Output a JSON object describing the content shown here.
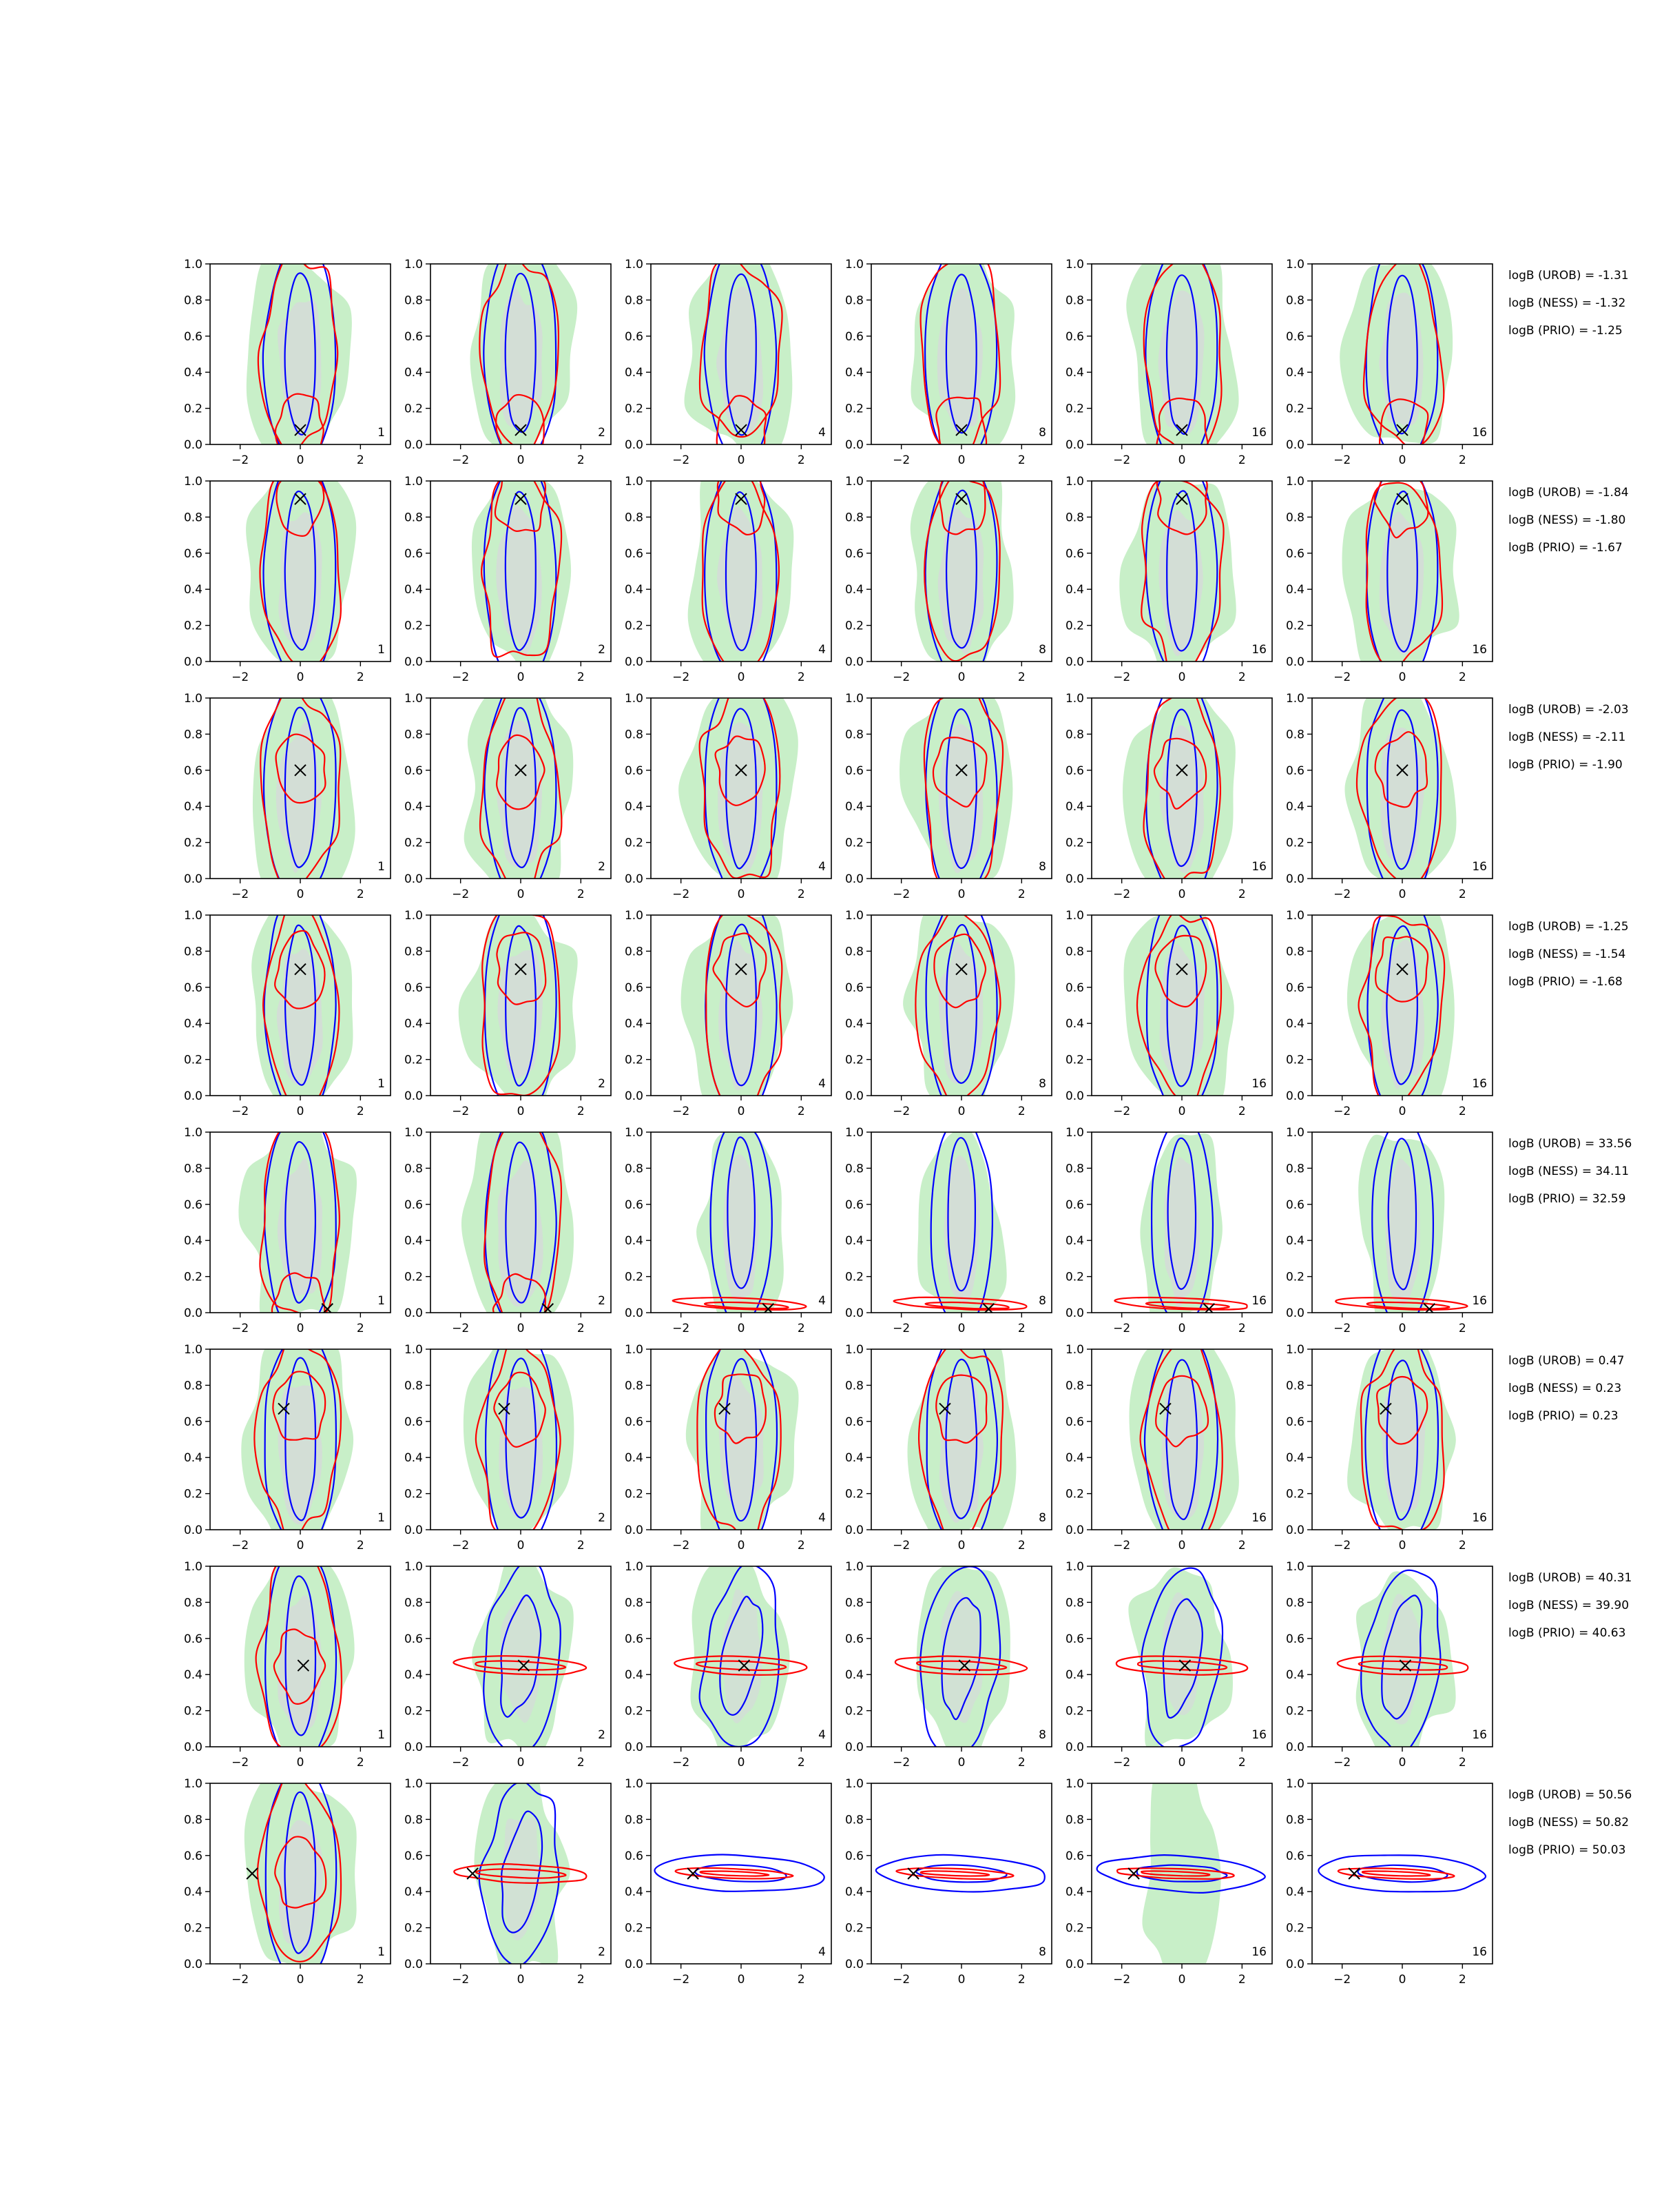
{
  "figure": {
    "columns": [
      1,
      2,
      4,
      8,
      16,
      16
    ],
    "colors": {
      "green_fill": "#c8efc8",
      "green_fill_inner": "#b4dfb4",
      "gray_fill": "#d7d7dc",
      "blue": "#0000ff",
      "red": "#ff0000",
      "axis": "#000000"
    }
  },
  "chart_data": [
    {
      "type": "contour-grid-row",
      "row": 1,
      "xlim": [
        -3,
        3
      ],
      "ylim": [
        0,
        1
      ],
      "xticks": [
        -2,
        0,
        2
      ],
      "yticks": [
        0.0,
        0.2,
        0.4,
        0.6,
        0.8,
        1.0
      ],
      "marker": {
        "x": 0.0,
        "y": 0.08
      },
      "panel_labels": [
        "1",
        "2",
        "4",
        "8",
        "16",
        "16"
      ],
      "annotations": [
        "logB (UROB) = -1.31",
        "logB (NESS) = -1.32",
        "logB (PRIO) = -1.25"
      ]
    },
    {
      "type": "contour-grid-row",
      "row": 2,
      "xlim": [
        -3,
        3
      ],
      "ylim": [
        0,
        1
      ],
      "xticks": [
        -2,
        0,
        2
      ],
      "yticks": [
        0.0,
        0.2,
        0.4,
        0.6,
        0.8,
        1.0
      ],
      "marker": {
        "x": 0.0,
        "y": 0.9
      },
      "panel_labels": [
        "1",
        "2",
        "4",
        "8",
        "16",
        "16"
      ],
      "annotations": [
        "logB (UROB) = -1.84",
        "logB (NESS) = -1.80",
        "logB (PRIO) = -1.67"
      ]
    },
    {
      "type": "contour-grid-row",
      "row": 3,
      "xlim": [
        -3,
        3
      ],
      "ylim": [
        0,
        1
      ],
      "xticks": [
        -2,
        0,
        2
      ],
      "yticks": [
        0.0,
        0.2,
        0.4,
        0.6,
        0.8,
        1.0
      ],
      "marker": {
        "x": 0.0,
        "y": 0.6
      },
      "panel_labels": [
        "1",
        "2",
        "4",
        "8",
        "16",
        "16"
      ],
      "annotations": [
        "logB (UROB) = -2.03",
        "logB (NESS) = -2.11",
        "logB (PRIO) = -1.90"
      ]
    },
    {
      "type": "contour-grid-row",
      "row": 4,
      "xlim": [
        -3,
        3
      ],
      "ylim": [
        0,
        1
      ],
      "xticks": [
        -2,
        0,
        2
      ],
      "yticks": [
        0.0,
        0.2,
        0.4,
        0.6,
        0.8,
        1.0
      ],
      "marker": {
        "x": 0.0,
        "y": 0.7
      },
      "panel_labels": [
        "1",
        "2",
        "4",
        "8",
        "16",
        "16"
      ],
      "annotations": [
        "logB (UROB) = -1.25",
        "logB (NESS) = -1.54",
        "logB (PRIO) = -1.68"
      ]
    },
    {
      "type": "contour-grid-row",
      "row": 5,
      "xlim": [
        -3,
        3
      ],
      "ylim": [
        0,
        1
      ],
      "xticks": [
        -2,
        0,
        2
      ],
      "yticks": [
        0.0,
        0.2,
        0.4,
        0.6,
        0.8,
        1.0
      ],
      "marker": {
        "x": 0.9,
        "y": 0.02
      },
      "panel_labels": [
        "1",
        "2",
        "4",
        "8",
        "16",
        "16"
      ],
      "annotations": [
        "logB (UROB) = 33.56",
        "logB (NESS) = 34.11",
        "logB (PRIO) = 32.59"
      ]
    },
    {
      "type": "contour-grid-row",
      "row": 6,
      "xlim": [
        -3,
        3
      ],
      "ylim": [
        0,
        1
      ],
      "xticks": [
        -2,
        0,
        2
      ],
      "yticks": [
        0.0,
        0.2,
        0.4,
        0.6,
        0.8,
        1.0
      ],
      "marker": {
        "x": -0.55,
        "y": 0.67
      },
      "panel_labels": [
        "1",
        "2",
        "4",
        "8",
        "16",
        "16"
      ],
      "annotations": [
        "logB (UROB) = 0.47",
        "logB (NESS) = 0.23",
        "logB (PRIO) = 0.23"
      ]
    },
    {
      "type": "contour-grid-row",
      "row": 7,
      "xlim": [
        -3,
        3
      ],
      "ylim": [
        0,
        1
      ],
      "xticks": [
        -2,
        0,
        2
      ],
      "yticks": [
        0.0,
        0.2,
        0.4,
        0.6,
        0.8,
        1.0
      ],
      "marker": {
        "x": 0.1,
        "y": 0.45
      },
      "panel_labels": [
        "1",
        "2",
        "4",
        "8",
        "16",
        "16"
      ],
      "annotations": [
        "logB (UROB) = 40.31",
        "logB (NESS) = 39.90",
        "logB (PRIO) = 40.63"
      ]
    },
    {
      "type": "contour-grid-row",
      "row": 8,
      "xlim": [
        -3,
        3
      ],
      "ylim": [
        0,
        1
      ],
      "xticks": [
        -2,
        0,
        2
      ],
      "yticks": [
        0.0,
        0.2,
        0.4,
        0.6,
        0.8,
        1.0
      ],
      "marker": {
        "x": -1.6,
        "y": 0.5
      },
      "panel_labels": [
        "1",
        "2",
        "4",
        "8",
        "16",
        "16"
      ],
      "annotations": [
        "logB (UROB) = 50.56",
        "logB (NESS) = 50.82",
        "logB (PRIO) = 50.03"
      ]
    }
  ]
}
